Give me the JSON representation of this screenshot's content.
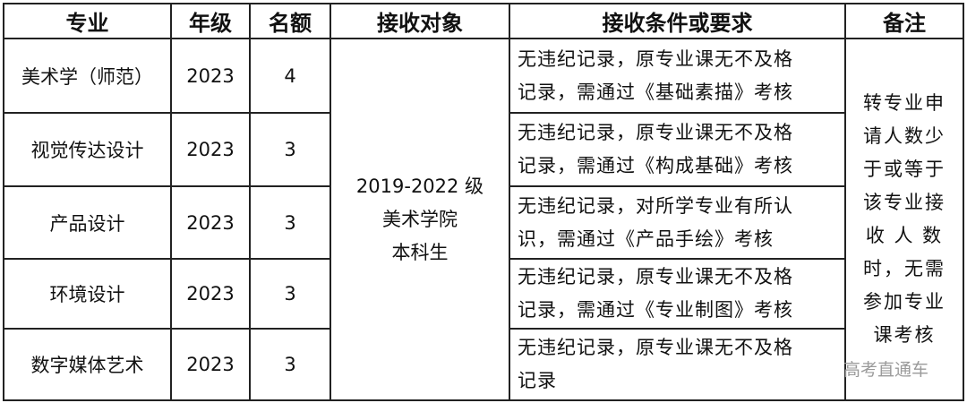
{
  "headers": [
    "专业",
    "年级",
    "名额",
    "接收对象",
    "接收条件或要求",
    "备注"
  ],
  "rows": [
    {
      "major": "美术学（师范）",
      "grade": "2023",
      "quota": "4",
      "condition": [
        "无违纪记录，原专业课无不及格",
        "记录，需通过《基础素描》考核"
      ]
    },
    {
      "major": "视觉传达设计",
      "grade": "2023",
      "quota": "3",
      "condition": [
        "无违纪记录，原专业课无不及格",
        "记录，需通过《构成基础》考核"
      ]
    },
    {
      "major": "产品设计",
      "grade": "2023",
      "quota": "3",
      "condition": [
        "无违纪记录，对所学专业有所认",
        "识，需通过《产品手绘》考核"
      ]
    },
    {
      "major": "环境设计",
      "grade": "2023",
      "quota": "3",
      "condition": [
        "无违纪记录，原专业课无不及格",
        "记录，需通过《专业制图》考核"
      ]
    },
    {
      "major": "数字媒体艺术",
      "grade": "2023",
      "quota": "3",
      "condition": [
        "无违纪记录，原专业课无不及格",
        "记录"
      ]
    }
  ],
  "target": [
    "2019-2022 级",
    "美术学院",
    "本科生"
  ],
  "note": [
    "转专业申",
    "请人数少",
    "于或等于",
    "该专业接",
    "收 人 数",
    "时，无需",
    "参加专业",
    "课考核"
  ],
  "watermark": "高考直通车"
}
